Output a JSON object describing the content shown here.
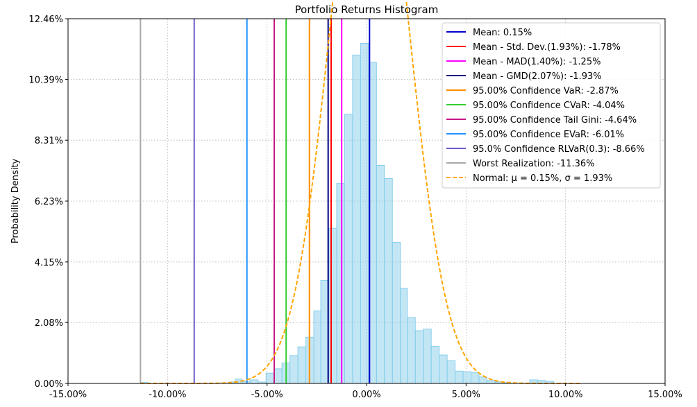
{
  "chart_data": {
    "type": "histogram",
    "title": "Portfolio Returns Histogram",
    "xlabel": "",
    "ylabel": "Probability Density",
    "xlim": [
      -15,
      15
    ],
    "ylim": [
      0,
      12.46
    ],
    "xticks": [
      -15,
      -10,
      -5,
      0,
      5,
      10,
      15
    ],
    "xtick_labels": [
      "-15.00%",
      "-10.00%",
      "-5.00%",
      "0.00%",
      "5.00%",
      "10.00%",
      "15.00%"
    ],
    "yticks": [
      0,
      2.08,
      4.15,
      6.23,
      8.31,
      10.39,
      12.46
    ],
    "ytick_labels": [
      "0.00%",
      "2.08%",
      "4.15%",
      "6.23%",
      "8.31%",
      "10.39%",
      "12.46%"
    ],
    "grid": true,
    "legend_position": "top-right",
    "histogram": {
      "color": "#87ceeb",
      "bins": [
        {
          "x0": -11.36,
          "x1": -10.99,
          "y": 0.03
        },
        {
          "x0": -6.9,
          "x1": -6.6,
          "y": 0.05
        },
        {
          "x0": -6.6,
          "x1": -6.25,
          "y": 0.15
        },
        {
          "x0": -6.25,
          "x1": -5.85,
          "y": 0.07
        },
        {
          "x0": -5.85,
          "x1": -5.45,
          "y": 0.12
        },
        {
          "x0": -5.45,
          "x1": -5.05,
          "y": 0.05
        },
        {
          "x0": -5.05,
          "x1": -4.65,
          "y": 0.35
        },
        {
          "x0": -4.65,
          "x1": -4.25,
          "y": 0.5
        },
        {
          "x0": -4.25,
          "x1": -3.85,
          "y": 0.7
        },
        {
          "x0": -3.85,
          "x1": -3.45,
          "y": 0.95
        },
        {
          "x0": -3.45,
          "x1": -3.05,
          "y": 1.25
        },
        {
          "x0": -3.05,
          "x1": -2.65,
          "y": 1.58
        },
        {
          "x0": -2.65,
          "x1": -2.3,
          "y": 2.48
        },
        {
          "x0": -2.3,
          "x1": -1.9,
          "y": 3.52
        },
        {
          "x0": -1.9,
          "x1": -1.5,
          "y": 5.3
        },
        {
          "x0": -1.5,
          "x1": -1.1,
          "y": 6.83
        },
        {
          "x0": -1.1,
          "x1": -0.7,
          "y": 9.2
        },
        {
          "x0": -0.7,
          "x1": -0.3,
          "y": 11.22
        },
        {
          "x0": -0.3,
          "x1": 0.1,
          "y": 11.62
        },
        {
          "x0": 0.1,
          "x1": 0.5,
          "y": 10.97
        },
        {
          "x0": 0.5,
          "x1": 0.9,
          "y": 7.45
        },
        {
          "x0": 0.9,
          "x1": 1.3,
          "y": 7.0
        },
        {
          "x0": 1.3,
          "x1": 1.7,
          "y": 4.82
        },
        {
          "x0": 1.7,
          "x1": 2.05,
          "y": 3.25
        },
        {
          "x0": 2.05,
          "x1": 2.45,
          "y": 2.25
        },
        {
          "x0": 2.45,
          "x1": 2.85,
          "y": 1.8
        },
        {
          "x0": 2.85,
          "x1": 3.25,
          "y": 1.86
        },
        {
          "x0": 3.25,
          "x1": 3.65,
          "y": 1.27
        },
        {
          "x0": 3.65,
          "x1": 4.05,
          "y": 0.97
        },
        {
          "x0": 4.05,
          "x1": 4.45,
          "y": 0.78
        },
        {
          "x0": 4.45,
          "x1": 4.85,
          "y": 0.42
        },
        {
          "x0": 4.85,
          "x1": 5.25,
          "y": 0.4
        },
        {
          "x0": 5.25,
          "x1": 5.65,
          "y": 0.37
        },
        {
          "x0": 5.65,
          "x1": 6.05,
          "y": 0.22
        },
        {
          "x0": 6.05,
          "x1": 6.45,
          "y": 0.1
        },
        {
          "x0": 6.45,
          "x1": 6.85,
          "y": 0.05
        },
        {
          "x0": 6.85,
          "x1": 7.25,
          "y": 0.03
        },
        {
          "x0": 8.2,
          "x1": 8.6,
          "y": 0.12
        },
        {
          "x0": 8.6,
          "x1": 9.0,
          "y": 0.1
        },
        {
          "x0": 9.0,
          "x1": 9.4,
          "y": 0.07
        }
      ]
    },
    "series": [
      {
        "name": "Mean: 0.15%",
        "kind": "vline",
        "x": 0.15,
        "color": "#0000cd"
      },
      {
        "name": "Mean - Std. Dev.(1.93%): -1.78%",
        "kind": "vline",
        "x": -1.78,
        "color": "#ff0000"
      },
      {
        "name": "Mean - MAD(1.40%): -1.25%",
        "kind": "vline",
        "x": -1.25,
        "color": "#ff00ff"
      },
      {
        "name": "Mean - GMD(2.07%): -1.93%",
        "kind": "vline",
        "x": -1.93,
        "color": "#000080"
      },
      {
        "name": "95.00% Confidence VaR: -2.87%",
        "kind": "vline",
        "x": -2.87,
        "color": "#ff8c00"
      },
      {
        "name": "95.00% Confidence CVaR: -4.04%",
        "kind": "vline",
        "x": -4.04,
        "color": "#32cd32"
      },
      {
        "name": "95.00% Confidence Tail Gini: -4.64%",
        "kind": "vline",
        "x": -4.64,
        "color": "#c71585"
      },
      {
        "name": "95.00% Confidence EVaR: -6.01%",
        "kind": "vline",
        "x": -6.01,
        "color": "#1e90ff"
      },
      {
        "name": "95.0% Confidence RLVaR(0.3): -8.66%",
        "kind": "vline",
        "x": -8.66,
        "color": "#6a5acd"
      },
      {
        "name": "Worst Realization: -11.36%",
        "kind": "vline",
        "x": -11.36,
        "color": "#a9a9a9"
      },
      {
        "name": "Normal: μ = 0.15%, σ = 1.93%",
        "kind": "normal_pdf",
        "mu": 0.15,
        "sigma": 1.93,
        "color": "#ffa500",
        "dashed": true
      }
    ]
  }
}
